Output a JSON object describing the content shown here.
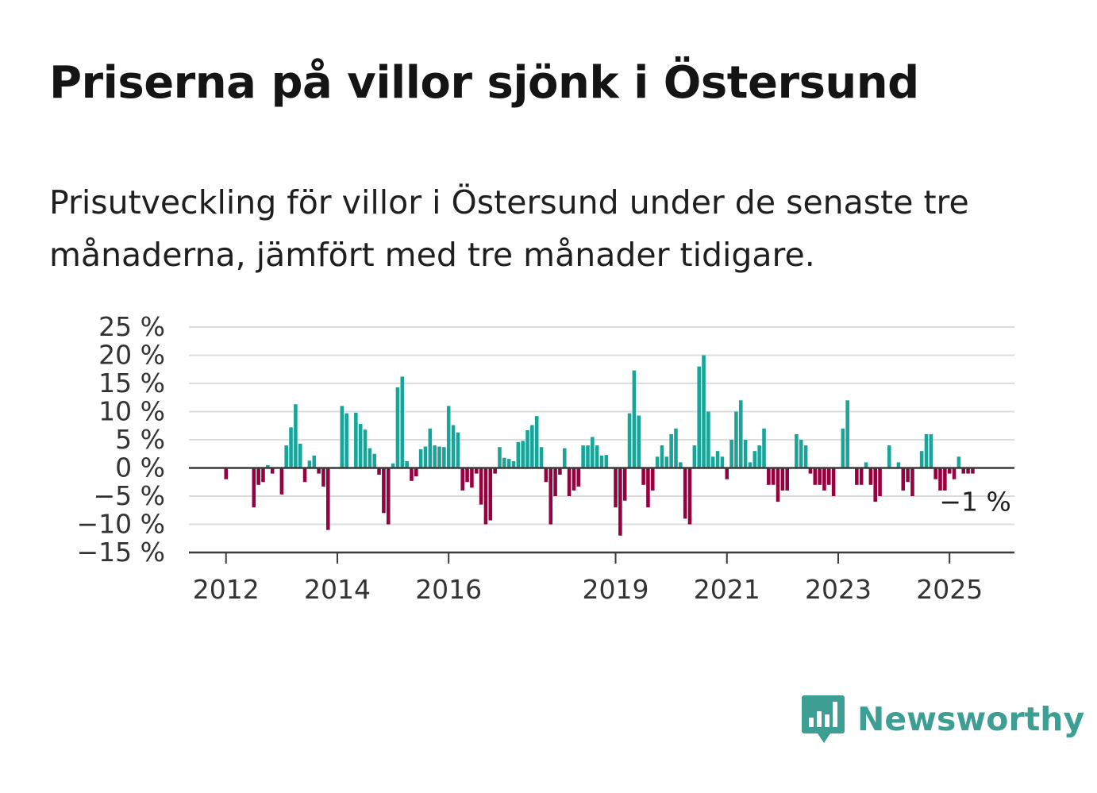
{
  "header": {
    "title": "Priserna på villor sjönk i Östersund",
    "subtitle": "Prisutveckling för villor i Östersund under de senaste tre månaderna, jämfört med tre månader tidigare."
  },
  "brand": {
    "name": "Newsworthy",
    "icon": "newsworthy-logo-icon",
    "color": "#3d9e93"
  },
  "chart_data": {
    "type": "bar",
    "x_start": "2012-01",
    "x_end": "2025-06",
    "xlim": [
      "2011-05",
      "2026-03"
    ],
    "ylim": [
      -15,
      25
    ],
    "yticks": [
      -15,
      -10,
      -5,
      0,
      5,
      10,
      15,
      20,
      25
    ],
    "ytick_labels": [
      "−15 %",
      "−10 %",
      "−5 %",
      "0 %",
      "5 %",
      "10 %",
      "15 %",
      "20 %",
      "25 %"
    ],
    "xticks": [
      "2012-01",
      "2014-01",
      "2016-01",
      "2019-01",
      "2021-01",
      "2023-01",
      "2025-01"
    ],
    "xtick_labels": [
      "2012",
      "2014",
      "2016",
      "2019",
      "2021",
      "2023",
      "2025"
    ],
    "grid": true,
    "positive_color": "#17a59a",
    "negative_color": "#96003f",
    "last_value_label": "−1 %",
    "values": [
      -2,
      0,
      0,
      0,
      0,
      0,
      -7,
      -3,
      -2.5,
      0.5,
      -1,
      0,
      -4.7,
      4,
      7.2,
      11.3,
      4.3,
      -2.5,
      1.3,
      2.2,
      -1,
      -3.3,
      -11,
      0,
      0,
      11,
      9.7,
      0,
      9.8,
      7.8,
      6.8,
      3.5,
      2.5,
      -1.2,
      -8,
      -10,
      0.8,
      14.3,
      16.2,
      1.2,
      -2.3,
      -1.5,
      3.3,
      3.8,
      7,
      4,
      3.8,
      3.7,
      11,
      7.6,
      6.3,
      -4,
      -2.5,
      -3.5,
      -1,
      -6.5,
      -10,
      -9.3,
      -1,
      3.7,
      1.8,
      1.6,
      1.2,
      4.6,
      4.8,
      6.7,
      7.6,
      9.2,
      3.7,
      -2.5,
      -10,
      -5,
      -1.2,
      3.5,
      -5,
      -4,
      -3.3,
      4,
      4,
      5.5,
      4,
      2.2,
      2.3,
      0,
      -7,
      -12,
      -5.8,
      9.7,
      17.3,
      9.3,
      -3,
      -7,
      -4,
      2,
      4,
      2,
      6,
      7,
      1,
      -9,
      -10,
      4,
      18,
      20,
      10,
      2,
      3,
      2,
      -2,
      5,
      10,
      12,
      5,
      1,
      3,
      4,
      7,
      -3,
      -3,
      -6,
      -4,
      -4,
      0,
      6,
      5,
      4,
      -1,
      -3,
      -3,
      -4,
      -3,
      -5,
      0,
      7,
      12,
      0,
      -3,
      -3,
      1,
      -3,
      -6,
      -5,
      0,
      4,
      0,
      1,
      -4,
      -2.5,
      -5,
      0,
      3,
      6,
      6,
      -2,
      -4,
      -4,
      -1,
      -2,
      2,
      -1,
      -1,
      -1
    ]
  }
}
